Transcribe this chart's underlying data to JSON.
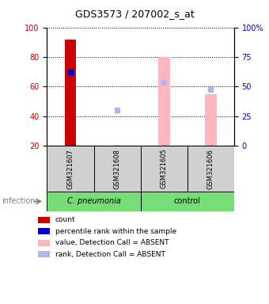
{
  "title": "GDS3573 / 207002_s_at",
  "samples": [
    "GSM321607",
    "GSM321608",
    "GSM321605",
    "GSM321606"
  ],
  "count_values": [
    92,
    null,
    null,
    null
  ],
  "value_absent_values": [
    null,
    null,
    80,
    55
  ],
  "percentile_rank_values": [
    70,
    null,
    null,
    null
  ],
  "rank_absent_values": [
    null,
    44,
    63,
    58
  ],
  "count_bottom_markers": [
    null,
    20,
    20,
    20
  ],
  "ylim_left": [
    20,
    100
  ],
  "ylim_right": [
    0,
    100
  ],
  "yticks_left": [
    20,
    40,
    60,
    80,
    100
  ],
  "yticks_right": [
    0,
    25,
    50,
    75,
    100
  ],
  "ytick_labels_right": [
    "0",
    "25",
    "50",
    "75",
    "100%"
  ],
  "bar_width": 0.25,
  "group_label": "infection",
  "cpneumonia_label": "C. pneumonia",
  "control_label": "control",
  "color_count": "#cc0000",
  "color_rank": "#0000cc",
  "color_value_absent": "#ffb6c1",
  "color_rank_absent": "#b0b8e8",
  "color_gray": "#d0d0d0",
  "color_green": "#77dd77",
  "legend_labels": [
    "count",
    "percentile rank within the sample",
    "value, Detection Call = ABSENT",
    "rank, Detection Call = ABSENT"
  ],
  "legend_colors": [
    "#cc0000",
    "#0000cc",
    "#ffb6c1",
    "#b0b8e8"
  ]
}
